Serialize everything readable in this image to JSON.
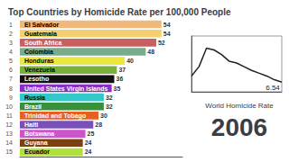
{
  "chart_data": [
    {
      "type": "bar",
      "orientation": "horizontal",
      "title": "Top Countries by Homicide Rate per 100,000 People",
      "subtitle": "2006",
      "categories": [
        "El Salvador",
        "Guatemala",
        "South Africa",
        "Colombia",
        "Honduras",
        "Venezuela",
        "Lesotho",
        "United States Virgin Islands",
        "Russia",
        "Brazil",
        "Trinidad and Tobago",
        "Haiti",
        "Botswana",
        "Guyana",
        "Ecuador"
      ],
      "ranks": [
        1,
        2,
        3,
        4,
        5,
        6,
        7,
        8,
        9,
        10,
        11,
        12,
        13,
        14,
        15
      ],
      "values": [
        54,
        54,
        52,
        48,
        40,
        37,
        36,
        35,
        32,
        32,
        30,
        28,
        25,
        24,
        24
      ],
      "colors": [
        "#f0b87a",
        "#f5d06e",
        "#c96060",
        "#7aab8a",
        "#e8e840",
        "#7ab03a",
        "#111111",
        "#8b2bc9",
        "#30c8c8",
        "#3a8f3a",
        "#e86020",
        "#7850b8",
        "#cc55cc",
        "#7a4010",
        "#b0e040"
      ],
      "xlim": [
        0,
        62
      ],
      "data_labels": true,
      "tick_labels": "y",
      "grid": false
    },
    {
      "type": "line",
      "title": "World Homicide Rate",
      "x": [
        0,
        1,
        2,
        3,
        4,
        5,
        6,
        7,
        8,
        9,
        10,
        11,
        12
      ],
      "values": [
        7.2,
        8.2,
        10.2,
        10.0,
        9.5,
        8.8,
        8.6,
        8.2,
        7.8,
        7.5,
        7.2,
        6.8,
        6.54
      ],
      "color": "#222222",
      "xlim": [
        0,
        12
      ],
      "ylim": [
        5.5,
        11.5
      ],
      "tick_labels": false,
      "grid": false,
      "annotations": [
        {
          "text": "6.54",
          "x": 12,
          "y": 6.54
        }
      ]
    }
  ]
}
